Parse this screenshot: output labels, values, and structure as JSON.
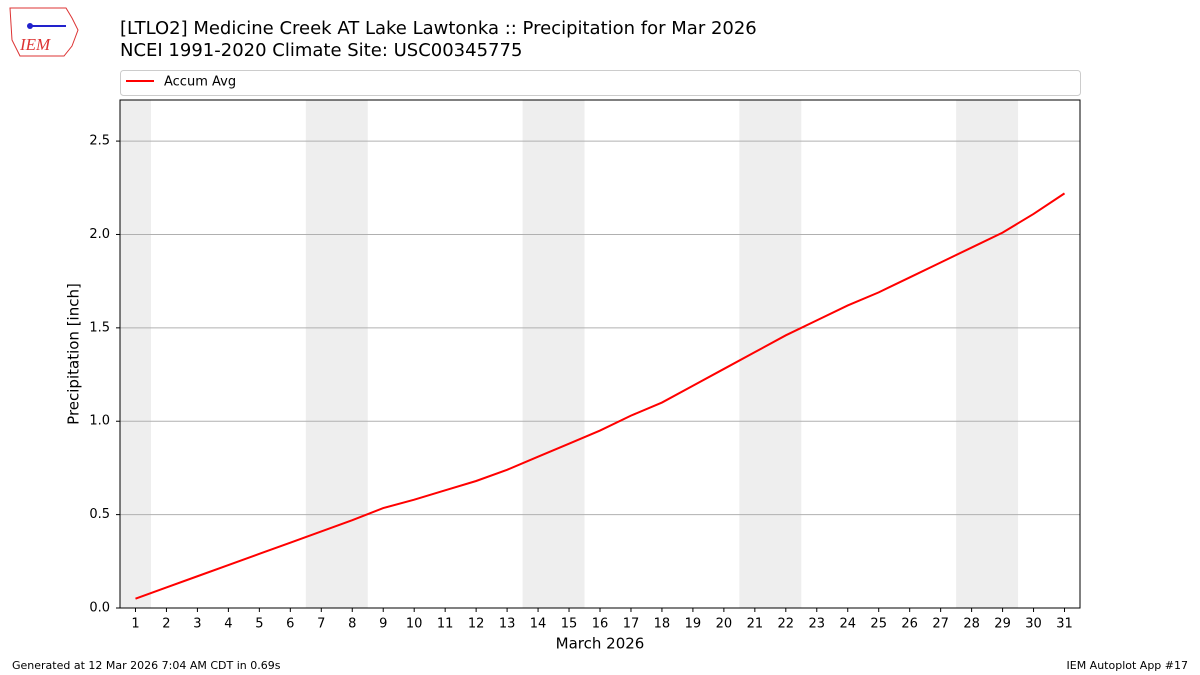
{
  "logo_text": "IEM",
  "footer_left": "Generated at 12 Mar 2026 7:04 AM CDT in 0.69s",
  "footer_right": "IEM Autoplot App #17",
  "chart_data": {
    "type": "line",
    "title": "[LTLO2] Medicine Creek  AT Lake Lawtonka :: Precipitation for Mar 2026",
    "subtitle": "NCEI 1991-2020 Climate Site: USC00345775",
    "x_label": "March 2026",
    "y_label": "Precipitation [inch]",
    "x": [
      1,
      2,
      3,
      4,
      5,
      6,
      7,
      8,
      9,
      10,
      11,
      12,
      13,
      14,
      15,
      16,
      17,
      18,
      19,
      20,
      21,
      22,
      23,
      24,
      25,
      26,
      27,
      28,
      29,
      30,
      31
    ],
    "series": [
      {
        "name": "Accum Avg",
        "color": "#ff0000",
        "values": [
          0.05,
          0.11,
          0.17,
          0.23,
          0.29,
          0.35,
          0.41,
          0.47,
          0.535,
          0.58,
          0.63,
          0.68,
          0.74,
          0.81,
          0.88,
          0.95,
          1.03,
          1.1,
          1.19,
          1.28,
          1.37,
          1.46,
          1.54,
          1.62,
          1.69,
          1.77,
          1.85,
          1.93,
          2.01,
          2.11,
          2.22
        ]
      }
    ],
    "xlim": [
      0.5,
      31.5
    ],
    "xticks": [
      1,
      2,
      3,
      4,
      5,
      6,
      7,
      8,
      9,
      10,
      11,
      12,
      13,
      14,
      15,
      16,
      17,
      18,
      19,
      20,
      21,
      22,
      23,
      24,
      25,
      26,
      27,
      28,
      29,
      30,
      31
    ],
    "ylim": [
      0,
      2.72
    ],
    "yticks": [
      {
        "value": 0,
        "label": "0.0"
      },
      0.5,
      {
        "value": 1,
        "label": "1.0"
      },
      1.5,
      {
        "value": 2,
        "label": "2.0"
      },
      2.5
    ],
    "grid": true,
    "legend": "top",
    "shaded_spans": [
      [
        0.5,
        1.5
      ],
      [
        6.5,
        8.5
      ],
      [
        13.5,
        15.5
      ],
      [
        20.5,
        22.5
      ],
      [
        27.5,
        29.5
      ]
    ],
    "shade_color": "#eeeeee"
  }
}
